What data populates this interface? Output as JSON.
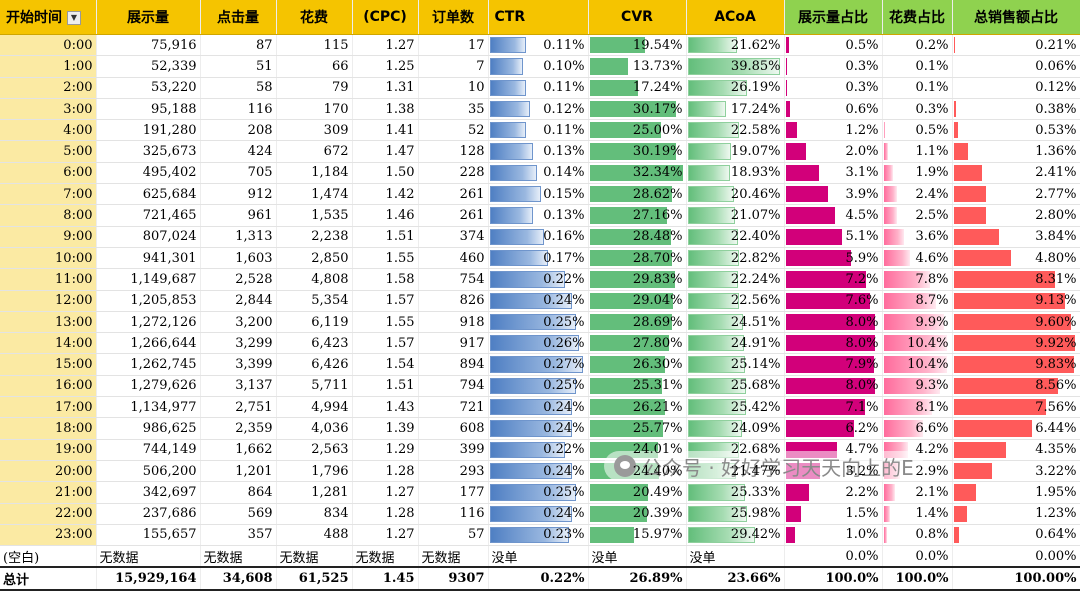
{
  "headers": [
    "开始时间",
    "展示量",
    "点击量",
    "花费",
    "(CPC)",
    "订单数",
    "CTR",
    "CVR",
    "ACoA",
    "展示量占比",
    "花费占比",
    "总销售额占比"
  ],
  "rows": [
    {
      "time": "0:00",
      "imp": "75,916",
      "clicks": "87",
      "cost": "115",
      "cpc": "1.27",
      "orders": "17",
      "ctr": "0.11%",
      "ctr_v": 0.11,
      "cvr": "19.54%",
      "cvr_v": 19.54,
      "acoa": "21.62%",
      "acoa_v": 21.62,
      "imp_share": "0.5%",
      "imp_share_v": 0.5,
      "cost_share": "0.2%",
      "cost_share_v": 0.2,
      "sales_share": "0.21%",
      "sales_share_v": 0.21
    },
    {
      "time": "1:00",
      "imp": "52,339",
      "clicks": "51",
      "cost": "66",
      "cpc": "1.25",
      "orders": "7",
      "ctr": "0.10%",
      "ctr_v": 0.1,
      "cvr": "13.73%",
      "cvr_v": 13.73,
      "acoa": "39.85%",
      "acoa_v": 39.85,
      "imp_share": "0.3%",
      "imp_share_v": 0.3,
      "cost_share": "0.1%",
      "cost_share_v": 0.1,
      "sales_share": "0.06%",
      "sales_share_v": 0.06
    },
    {
      "time": "2:00",
      "imp": "53,220",
      "clicks": "58",
      "cost": "79",
      "cpc": "1.31",
      "orders": "10",
      "ctr": "0.11%",
      "ctr_v": 0.11,
      "cvr": "17.24%",
      "cvr_v": 17.24,
      "acoa": "26.19%",
      "acoa_v": 26.19,
      "imp_share": "0.3%",
      "imp_share_v": 0.3,
      "cost_share": "0.1%",
      "cost_share_v": 0.1,
      "sales_share": "0.12%",
      "sales_share_v": 0.12
    },
    {
      "time": "3:00",
      "imp": "95,188",
      "clicks": "116",
      "cost": "170",
      "cpc": "1.38",
      "orders": "35",
      "ctr": "0.12%",
      "ctr_v": 0.12,
      "cvr": "30.17%",
      "cvr_v": 30.17,
      "acoa": "17.24%",
      "acoa_v": 17.24,
      "imp_share": "0.6%",
      "imp_share_v": 0.6,
      "cost_share": "0.3%",
      "cost_share_v": 0.3,
      "sales_share": "0.38%",
      "sales_share_v": 0.38
    },
    {
      "time": "4:00",
      "imp": "191,280",
      "clicks": "208",
      "cost": "309",
      "cpc": "1.41",
      "orders": "52",
      "ctr": "0.11%",
      "ctr_v": 0.11,
      "cvr": "25.00%",
      "cvr_v": 25.0,
      "acoa": "22.58%",
      "acoa_v": 22.58,
      "imp_share": "1.2%",
      "imp_share_v": 1.2,
      "cost_share": "0.5%",
      "cost_share_v": 0.5,
      "sales_share": "0.53%",
      "sales_share_v": 0.53
    },
    {
      "time": "5:00",
      "imp": "325,673",
      "clicks": "424",
      "cost": "672",
      "cpc": "1.47",
      "orders": "128",
      "ctr": "0.13%",
      "ctr_v": 0.13,
      "cvr": "30.19%",
      "cvr_v": 30.19,
      "acoa": "19.07%",
      "acoa_v": 19.07,
      "imp_share": "2.0%",
      "imp_share_v": 2.0,
      "cost_share": "1.1%",
      "cost_share_v": 1.1,
      "sales_share": "1.36%",
      "sales_share_v": 1.36
    },
    {
      "time": "6:00",
      "imp": "495,402",
      "clicks": "705",
      "cost": "1,184",
      "cpc": "1.50",
      "orders": "228",
      "ctr": "0.14%",
      "ctr_v": 0.14,
      "cvr": "32.34%",
      "cvr_v": 32.34,
      "acoa": "18.93%",
      "acoa_v": 18.93,
      "imp_share": "3.1%",
      "imp_share_v": 3.1,
      "cost_share": "1.9%",
      "cost_share_v": 1.9,
      "sales_share": "2.41%",
      "sales_share_v": 2.41
    },
    {
      "time": "7:00",
      "imp": "625,684",
      "clicks": "912",
      "cost": "1,474",
      "cpc": "1.42",
      "orders": "261",
      "ctr": "0.15%",
      "ctr_v": 0.15,
      "cvr": "28.62%",
      "cvr_v": 28.62,
      "acoa": "20.46%",
      "acoa_v": 20.46,
      "imp_share": "3.9%",
      "imp_share_v": 3.9,
      "cost_share": "2.4%",
      "cost_share_v": 2.4,
      "sales_share": "2.77%",
      "sales_share_v": 2.77
    },
    {
      "time": "8:00",
      "imp": "721,465",
      "clicks": "961",
      "cost": "1,535",
      "cpc": "1.46",
      "orders": "261",
      "ctr": "0.13%",
      "ctr_v": 0.13,
      "cvr": "27.16%",
      "cvr_v": 27.16,
      "acoa": "21.07%",
      "acoa_v": 21.07,
      "imp_share": "4.5%",
      "imp_share_v": 4.5,
      "cost_share": "2.5%",
      "cost_share_v": 2.5,
      "sales_share": "2.80%",
      "sales_share_v": 2.8
    },
    {
      "time": "9:00",
      "imp": "807,024",
      "clicks": "1,313",
      "cost": "2,238",
      "cpc": "1.51",
      "orders": "374",
      "ctr": "0.16%",
      "ctr_v": 0.16,
      "cvr": "28.48%",
      "cvr_v": 28.48,
      "acoa": "22.40%",
      "acoa_v": 22.4,
      "imp_share": "5.1%",
      "imp_share_v": 5.1,
      "cost_share": "3.6%",
      "cost_share_v": 3.6,
      "sales_share": "3.84%",
      "sales_share_v": 3.84
    },
    {
      "time": "10:00",
      "imp": "941,301",
      "clicks": "1,603",
      "cost": "2,850",
      "cpc": "1.55",
      "orders": "460",
      "ctr": "0.17%",
      "ctr_v": 0.17,
      "cvr": "28.70%",
      "cvr_v": 28.7,
      "acoa": "22.82%",
      "acoa_v": 22.82,
      "imp_share": "5.9%",
      "imp_share_v": 5.9,
      "cost_share": "4.6%",
      "cost_share_v": 4.6,
      "sales_share": "4.80%",
      "sales_share_v": 4.8
    },
    {
      "time": "11:00",
      "imp": "1,149,687",
      "clicks": "2,528",
      "cost": "4,808",
      "cpc": "1.58",
      "orders": "754",
      "ctr": "0.22%",
      "ctr_v": 0.22,
      "cvr": "29.83%",
      "cvr_v": 29.83,
      "acoa": "22.24%",
      "acoa_v": 22.24,
      "imp_share": "7.2%",
      "imp_share_v": 7.2,
      "cost_share": "7.8%",
      "cost_share_v": 7.8,
      "sales_share": "8.31%",
      "sales_share_v": 8.31
    },
    {
      "time": "12:00",
      "imp": "1,205,853",
      "clicks": "2,844",
      "cost": "5,354",
      "cpc": "1.57",
      "orders": "826",
      "ctr": "0.24%",
      "ctr_v": 0.24,
      "cvr": "29.04%",
      "cvr_v": 29.04,
      "acoa": "22.56%",
      "acoa_v": 22.56,
      "imp_share": "7.6%",
      "imp_share_v": 7.6,
      "cost_share": "8.7%",
      "cost_share_v": 8.7,
      "sales_share": "9.13%",
      "sales_share_v": 9.13
    },
    {
      "time": "13:00",
      "imp": "1,272,126",
      "clicks": "3,200",
      "cost": "6,119",
      "cpc": "1.55",
      "orders": "918",
      "ctr": "0.25%",
      "ctr_v": 0.25,
      "cvr": "28.69%",
      "cvr_v": 28.69,
      "acoa": "24.51%",
      "acoa_v": 24.51,
      "imp_share": "8.0%",
      "imp_share_v": 8.0,
      "cost_share": "9.9%",
      "cost_share_v": 9.9,
      "sales_share": "9.60%",
      "sales_share_v": 9.6
    },
    {
      "time": "14:00",
      "imp": "1,266,644",
      "clicks": "3,299",
      "cost": "6,423",
      "cpc": "1.57",
      "orders": "917",
      "ctr": "0.26%",
      "ctr_v": 0.26,
      "cvr": "27.80%",
      "cvr_v": 27.8,
      "acoa": "24.91%",
      "acoa_v": 24.91,
      "imp_share": "8.0%",
      "imp_share_v": 8.0,
      "cost_share": "10.4%",
      "cost_share_v": 10.4,
      "sales_share": "9.92%",
      "sales_share_v": 9.92
    },
    {
      "time": "15:00",
      "imp": "1,262,745",
      "clicks": "3,399",
      "cost": "6,426",
      "cpc": "1.54",
      "orders": "894",
      "ctr": "0.27%",
      "ctr_v": 0.27,
      "cvr": "26.30%",
      "cvr_v": 26.3,
      "acoa": "25.14%",
      "acoa_v": 25.14,
      "imp_share": "7.9%",
      "imp_share_v": 7.9,
      "cost_share": "10.4%",
      "cost_share_v": 10.4,
      "sales_share": "9.83%",
      "sales_share_v": 9.83
    },
    {
      "time": "16:00",
      "imp": "1,279,626",
      "clicks": "3,137",
      "cost": "5,711",
      "cpc": "1.51",
      "orders": "794",
      "ctr": "0.25%",
      "ctr_v": 0.25,
      "cvr": "25.31%",
      "cvr_v": 25.31,
      "acoa": "25.68%",
      "acoa_v": 25.68,
      "imp_share": "8.0%",
      "imp_share_v": 8.0,
      "cost_share": "9.3%",
      "cost_share_v": 9.3,
      "sales_share": "8.56%",
      "sales_share_v": 8.56
    },
    {
      "time": "17:00",
      "imp": "1,134,977",
      "clicks": "2,751",
      "cost": "4,994",
      "cpc": "1.43",
      "orders": "721",
      "ctr": "0.24%",
      "ctr_v": 0.24,
      "cvr": "26.21%",
      "cvr_v": 26.21,
      "acoa": "25.42%",
      "acoa_v": 25.42,
      "imp_share": "7.1%",
      "imp_share_v": 7.1,
      "cost_share": "8.1%",
      "cost_share_v": 8.1,
      "sales_share": "7.56%",
      "sales_share_v": 7.56
    },
    {
      "time": "18:00",
      "imp": "986,625",
      "clicks": "2,359",
      "cost": "4,036",
      "cpc": "1.39",
      "orders": "608",
      "ctr": "0.24%",
      "ctr_v": 0.24,
      "cvr": "25.77%",
      "cvr_v": 25.77,
      "acoa": "24.09%",
      "acoa_v": 24.09,
      "imp_share": "6.2%",
      "imp_share_v": 6.2,
      "cost_share": "6.6%",
      "cost_share_v": 6.6,
      "sales_share": "6.44%",
      "sales_share_v": 6.44
    },
    {
      "time": "19:00",
      "imp": "744,149",
      "clicks": "1,662",
      "cost": "2,563",
      "cpc": "1.29",
      "orders": "399",
      "ctr": "0.22%",
      "ctr_v": 0.22,
      "cvr": "24.01%",
      "cvr_v": 24.01,
      "acoa": "22.68%",
      "acoa_v": 22.68,
      "imp_share": "4.7%",
      "imp_share_v": 4.7,
      "cost_share": "4.2%",
      "cost_share_v": 4.2,
      "sales_share": "4.35%",
      "sales_share_v": 4.35
    },
    {
      "time": "20:00",
      "imp": "506,200",
      "clicks": "1,201",
      "cost": "1,796",
      "cpc": "1.28",
      "orders": "293",
      "ctr": "0.24%",
      "ctr_v": 0.24,
      "cvr": "24.40%",
      "cvr_v": 24.4,
      "acoa": "21.47%",
      "acoa_v": 21.47,
      "imp_share": "3.2%",
      "imp_share_v": 3.2,
      "cost_share": "2.9%",
      "cost_share_v": 2.9,
      "sales_share": "3.22%",
      "sales_share_v": 3.22
    },
    {
      "time": "21:00",
      "imp": "342,697",
      "clicks": "864",
      "cost": "1,281",
      "cpc": "1.27",
      "orders": "177",
      "ctr": "0.25%",
      "ctr_v": 0.25,
      "cvr": "20.49%",
      "cvr_v": 20.49,
      "acoa": "25.33%",
      "acoa_v": 25.33,
      "imp_share": "2.2%",
      "imp_share_v": 2.2,
      "cost_share": "2.1%",
      "cost_share_v": 2.1,
      "sales_share": "1.95%",
      "sales_share_v": 1.95
    },
    {
      "time": "22:00",
      "imp": "237,686",
      "clicks": "569",
      "cost": "834",
      "cpc": "1.28",
      "orders": "116",
      "ctr": "0.24%",
      "ctr_v": 0.24,
      "cvr": "20.39%",
      "cvr_v": 20.39,
      "acoa": "25.98%",
      "acoa_v": 25.98,
      "imp_share": "1.5%",
      "imp_share_v": 1.5,
      "cost_share": "1.4%",
      "cost_share_v": 1.4,
      "sales_share": "1.23%",
      "sales_share_v": 1.23
    },
    {
      "time": "23:00",
      "imp": "155,657",
      "clicks": "357",
      "cost": "488",
      "cpc": "1.27",
      "orders": "57",
      "ctr": "0.23%",
      "ctr_v": 0.23,
      "cvr": "15.97%",
      "cvr_v": 15.97,
      "acoa": "29.42%",
      "acoa_v": 29.42,
      "imp_share": "1.0%",
      "imp_share_v": 1.0,
      "cost_share": "0.8%",
      "cost_share_v": 0.8,
      "sales_share": "0.64%",
      "sales_share_v": 0.64
    }
  ],
  "blank_row": {
    "label": "(空白)",
    "no_data": "无数据",
    "no_order": "没单",
    "zero_pct": "0.0%",
    "zero_pct2": "0.00%"
  },
  "total_row": {
    "label": "总计",
    "imp": "15,929,164",
    "clicks": "34,608",
    "cost": "61,525",
    "cpc": "1.45",
    "orders": "9307",
    "ctr": "0.22%",
    "cvr": "26.89%",
    "acoa": "23.66%",
    "imp_share": "100.0%",
    "cost_share": "100.0%",
    "sales_share": "100.00%"
  },
  "bar_scale": {
    "ctr": 0.28,
    "cvr": 33,
    "acoa": 41,
    "imp_share": 8.5,
    "cost_share": 11,
    "sales_share": 10.2
  },
  "watermark": "公众号 · 好好学习天天向上的E",
  "colors": {
    "header": "#f5c400",
    "header_green": "#8fd24f",
    "row_header": "#fbeaa3",
    "ctr_bar": "#4f7fc3",
    "cvr_bar": "#63be7b",
    "acoa_bar": "#63be7b",
    "imp_bar": "#d2007a",
    "cost_bar": "#ff6b9c",
    "sales_bar": "#ff5a5a"
  }
}
